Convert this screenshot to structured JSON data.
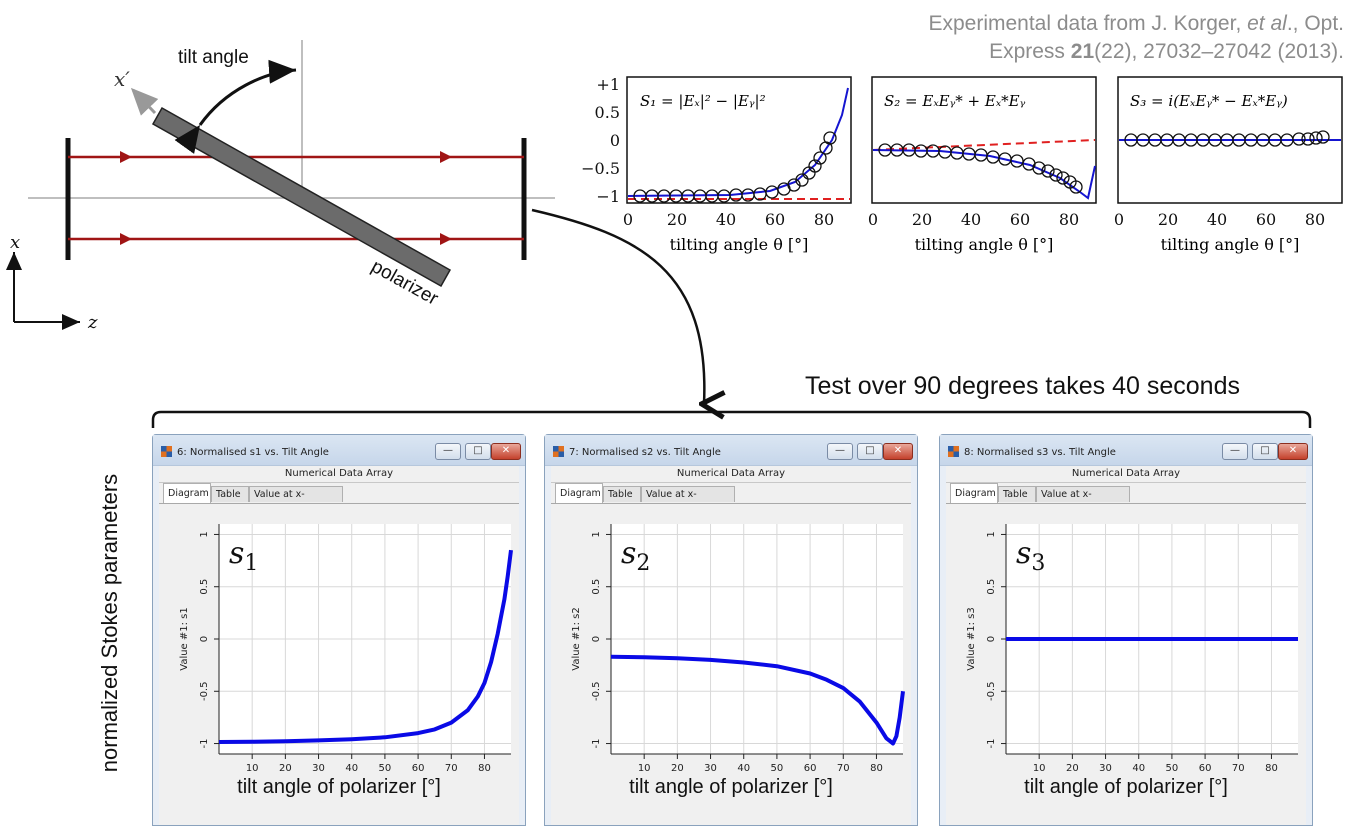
{
  "citation": {
    "line1_pre": "Experimental data from J. Korger, ",
    "line1_etal": "et al",
    "line1_post": "., Opt.",
    "line2_pre": "Express ",
    "line2_vol": "21",
    "line2_post": "(22), 27032–27042 (2013)."
  },
  "diagram": {
    "tilt_label": "tilt angle",
    "polarizer_label": "polarizer",
    "x_prime": "x′",
    "x_axis": "x",
    "z_axis": "z"
  },
  "test_note": "Test over 90 degrees takes 40 seconds",
  "ylabel_main": "normalized Stokes parameters",
  "paper_plots": [
    {
      "formula": "S₁ = |Eₓ|² − |Eᵧ|²",
      "xlabel": "tilting angle θ [°]",
      "yticks": [
        "+1",
        "0.5",
        "0",
        "−0.5",
        "−1"
      ],
      "xticks": [
        "0",
        "20",
        "40",
        "60",
        "80"
      ]
    },
    {
      "formula": "S₂ = EₓEᵧ* + Eₓ*Eᵧ",
      "xlabel": "tilting angle θ [°]",
      "xticks": [
        "0",
        "20",
        "40",
        "60",
        "80"
      ]
    },
    {
      "formula": "S₃ = i(EₓEᵧ* − Eₓ*Eᵧ)",
      "xlabel": "tilting angle θ [°]",
      "xticks": [
        "0",
        "20",
        "40",
        "60",
        "80"
      ]
    }
  ],
  "windows": [
    {
      "title": "6: Normalised s1 vs. Tilt Angle",
      "subheader": "Numerical Data Array",
      "tabs": [
        "Diagram",
        "Table",
        "Value at x-Coordinate"
      ],
      "ylabel": "Value #1: s1",
      "symbol": "s",
      "symbol_sub": "1",
      "xlabel": "tilt angle of polarizer [°]"
    },
    {
      "title": "7: Normalised s2 vs. Tilt Angle",
      "subheader": "Numerical Data Array",
      "tabs": [
        "Diagram",
        "Table",
        "Value at x-Coordinate"
      ],
      "ylabel": "Value #1: s2",
      "symbol": "s",
      "symbol_sub": "2",
      "xlabel": "tilt angle of polarizer [°]"
    },
    {
      "title": "8: Normalised s3 vs. Tilt Angle",
      "subheader": "Numerical Data Array",
      "tabs": [
        "Diagram",
        "Table",
        "Value at x-Coordinate"
      ],
      "ylabel": "Value #1: s3",
      "symbol": "s",
      "symbol_sub": "3",
      "xlabel": "tilt angle of polarizer [°]"
    }
  ],
  "window_buttons": {
    "min": "—",
    "max": "□",
    "close": "✕"
  },
  "chart_data": [
    {
      "type": "line",
      "title": "",
      "xlim": [
        0,
        88
      ],
      "ylim": [
        -1.1,
        1.1
      ],
      "xticks": [
        "10",
        "20",
        "30",
        "40",
        "50",
        "60",
        "70",
        "80"
      ],
      "yticks": [
        "1",
        "0.5",
        "0",
        "-0.5",
        "-1"
      ],
      "series": [
        {
          "x": [
            0,
            10,
            20,
            30,
            40,
            50,
            60,
            65,
            70,
            75,
            78,
            80,
            82,
            84,
            86,
            87,
            88
          ],
          "y": [
            -0.985,
            -0.983,
            -0.978,
            -0.97,
            -0.958,
            -0.94,
            -0.9,
            -0.865,
            -0.8,
            -0.68,
            -0.55,
            -0.42,
            -0.22,
            0.05,
            0.38,
            0.6,
            0.85
          ]
        }
      ]
    },
    {
      "type": "line",
      "title": "",
      "xlim": [
        0,
        88
      ],
      "ylim": [
        -1.1,
        1.1
      ],
      "xticks": [
        "10",
        "20",
        "30",
        "40",
        "50",
        "60",
        "70",
        "80"
      ],
      "yticks": [
        "1",
        "0.5",
        "0",
        "-0.5",
        "-1"
      ],
      "series": [
        {
          "x": [
            0,
            10,
            20,
            30,
            40,
            50,
            60,
            65,
            70,
            75,
            80,
            83,
            85,
            86,
            87,
            88
          ],
          "y": [
            -0.17,
            -0.175,
            -0.185,
            -0.2,
            -0.225,
            -0.26,
            -0.33,
            -0.39,
            -0.47,
            -0.6,
            -0.8,
            -0.95,
            -1.0,
            -0.93,
            -0.75,
            -0.5
          ]
        }
      ]
    },
    {
      "type": "line",
      "title": "",
      "xlim": [
        0,
        88
      ],
      "ylim": [
        -1.1,
        1.1
      ],
      "xticks": [
        "10",
        "20",
        "30",
        "40",
        "50",
        "60",
        "70",
        "80"
      ],
      "yticks": [
        "1",
        "0.5",
        "0",
        "-0.5",
        "-1"
      ],
      "series": [
        {
          "x": [
            0,
            88
          ],
          "y": [
            0,
            0
          ]
        }
      ]
    }
  ]
}
